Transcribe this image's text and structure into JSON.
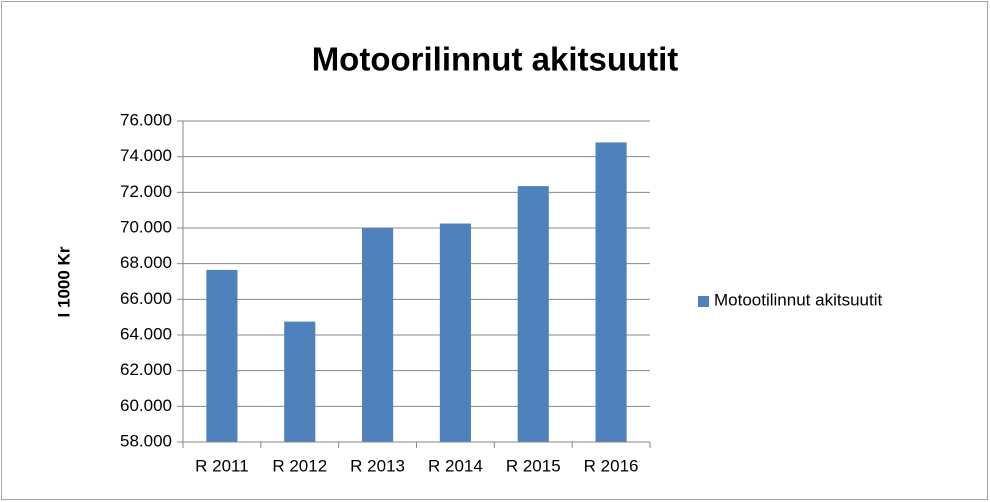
{
  "chart_data": {
    "type": "bar",
    "title": "Motoorilinnut akitsuutit",
    "y_label": "I 1000 Kr",
    "categories": [
      "R 2011",
      "R 2012",
      "R 2013",
      "R 2014",
      "R 2015",
      "R 2016"
    ],
    "series": [
      {
        "name": "Motootilinnut akitsuutit",
        "color": "#4f81bd",
        "values": [
          67650,
          64750,
          70000,
          70250,
          72350,
          74800
        ]
      }
    ],
    "ylim": [
      58000,
      76000
    ],
    "yticks": [
      {
        "value": 58000,
        "label": "58.000"
      },
      {
        "value": 60000,
        "label": "60.000"
      },
      {
        "value": 62000,
        "label": "62.000"
      },
      {
        "value": 64000,
        "label": "64.000"
      },
      {
        "value": 66000,
        "label": "66.000"
      },
      {
        "value": 68000,
        "label": "68.000"
      },
      {
        "value": 70000,
        "label": "70.000"
      },
      {
        "value": 72000,
        "label": "72.000"
      },
      {
        "value": 74000,
        "label": "74.000"
      },
      {
        "value": 76000,
        "label": "76.000"
      }
    ],
    "grid": true,
    "legend": "right"
  }
}
